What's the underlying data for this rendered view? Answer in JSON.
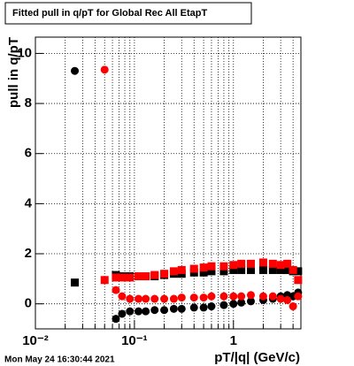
{
  "chart_data": {
    "type": "scatter",
    "title": "Fitted pull in q/pT for Global Rec All EtapT",
    "x_label": "pT/|q| (GeV/c)",
    "y_label": "pull in q/pT",
    "footer": "Mon May 24 16:30:44 2021",
    "xscale": "log",
    "grid": true,
    "xlim": [
      0.01,
      4.8
    ],
    "ylim": [
      -1,
      10.65
    ],
    "xticks": [
      {
        "value": 0.01,
        "label": "10⁻²"
      },
      {
        "value": 0.1,
        "label": "10⁻¹"
      },
      1
    ],
    "yticks": [
      0,
      2,
      4,
      6,
      8,
      10
    ],
    "series": [
      {
        "color": "#000000",
        "marker": "circle",
        "x": [
          0.025,
          0.065,
          0.075,
          0.09,
          0.11,
          0.13,
          0.16,
          0.2,
          0.25,
          0.3,
          0.4,
          0.5,
          0.6,
          0.8,
          1,
          1.2,
          1.5,
          2,
          2.5,
          3,
          3.5,
          4,
          4.5
        ],
        "values": [
          9.3,
          -0.6,
          -0.4,
          -0.3,
          -0.3,
          -0.3,
          -0.25,
          -0.25,
          -0.2,
          -0.2,
          -0.15,
          -0.15,
          -0.1,
          -0.05,
          0,
          0.05,
          0.1,
          0.15,
          0.2,
          0.3,
          0.35,
          0.3,
          0.45
        ]
      },
      {
        "color": "#000000",
        "marker": "square",
        "x": [
          0.025,
          0.065,
          0.075,
          0.09,
          0.11,
          0.13,
          0.16,
          0.2,
          0.25,
          0.3,
          0.4,
          0.5,
          0.6,
          0.8,
          1,
          1.2,
          1.5,
          2,
          2.5,
          3,
          3.5,
          4,
          4.5
        ],
        "values": [
          0.85,
          1.15,
          1.1,
          1.1,
          1.1,
          1.1,
          1.1,
          1.15,
          1.2,
          1.2,
          1.25,
          1.25,
          1.3,
          1.3,
          1.35,
          1.35,
          1.35,
          1.35,
          1.35,
          1.35,
          1.35,
          1.3,
          1.3
        ]
      },
      {
        "color": "#ff0000",
        "marker": "circle",
        "x": [
          0.05,
          0.065,
          0.075,
          0.09,
          0.11,
          0.13,
          0.16,
          0.2,
          0.25,
          0.3,
          0.4,
          0.5,
          0.6,
          0.8,
          1,
          1.2,
          1.5,
          2,
          2.5,
          3,
          3.5,
          4,
          4.5
        ],
        "values": [
          9.35,
          0.55,
          0.3,
          0.2,
          0.2,
          0.2,
          0.2,
          0.2,
          0.2,
          0.25,
          0.25,
          0.25,
          0.3,
          0.3,
          0.3,
          0.3,
          0.35,
          0.3,
          0.3,
          0.2,
          0.15,
          -0.1,
          0.3
        ]
      },
      {
        "color": "#ff0000",
        "marker": "square",
        "x": [
          0.05,
          0.065,
          0.075,
          0.09,
          0.11,
          0.13,
          0.16,
          0.2,
          0.25,
          0.3,
          0.4,
          0.5,
          0.6,
          0.8,
          1,
          1.2,
          1.5,
          2,
          2.5,
          3,
          3.5,
          4,
          4.5
        ],
        "values": [
          0.95,
          1.05,
          1.05,
          1.05,
          1.1,
          1.1,
          1.15,
          1.2,
          1.3,
          1.35,
          1.4,
          1.45,
          1.5,
          1.5,
          1.55,
          1.6,
          1.6,
          1.65,
          1.6,
          1.55,
          1.6,
          1.35,
          0.95
        ]
      }
    ]
  }
}
